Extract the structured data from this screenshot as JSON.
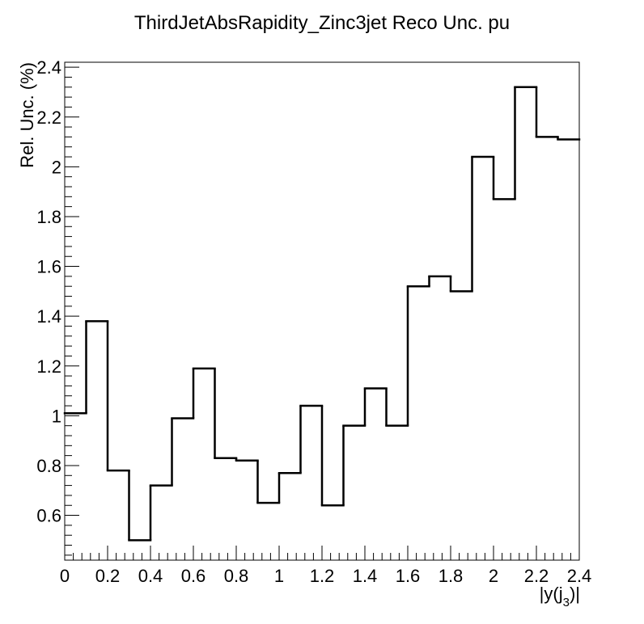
{
  "chart_data": {
    "type": "line",
    "subtype": "step-histogram",
    "title": "ThirdJetAbsRapidity_Zinc3jet Reco Unc. pu",
    "xlabel": {
      "main": "|y(j",
      "sub": "3",
      "tail": ")|"
    },
    "ylabel": "Rel. Unc. (%)",
    "xlim": [
      0,
      2.4
    ],
    "ylim": [
      0.42,
      2.42
    ],
    "x_ticks": [
      0,
      0.2,
      0.4,
      0.6,
      0.8,
      1,
      1.2,
      1.4,
      1.6,
      1.8,
      2,
      2.2,
      2.4
    ],
    "x_tick_labels": [
      "0",
      "0.2",
      "0.4",
      "0.6",
      "0.8",
      "1",
      "1.2",
      "1.4",
      "1.6",
      "1.8",
      "2",
      "2.2",
      "2.4"
    ],
    "y_ticks": [
      0.6,
      0.8,
      1,
      1.2,
      1.4,
      1.6,
      1.8,
      2,
      2.2,
      2.4
    ],
    "y_tick_labels": [
      "0.6",
      "0.8",
      "1",
      "1.2",
      "1.4",
      "1.6",
      "1.8",
      "2",
      "2.2",
      "2.4"
    ],
    "bin_edges": [
      0,
      0.1,
      0.2,
      0.3,
      0.4,
      0.5,
      0.6,
      0.7,
      0.8,
      0.9,
      1.0,
      1.1,
      1.2,
      1.3,
      1.4,
      1.5,
      1.6,
      1.7,
      1.8,
      1.9,
      2.0,
      2.1,
      2.2,
      2.3,
      2.4
    ],
    "values": [
      1.01,
      1.38,
      0.78,
      0.5,
      0.72,
      0.99,
      1.19,
      0.83,
      0.82,
      0.65,
      0.77,
      1.04,
      0.64,
      0.96,
      1.11,
      0.96,
      1.52,
      1.56,
      1.5,
      2.04,
      1.87,
      2.32,
      2.12,
      2.11
    ],
    "grid": false,
    "legend": "none",
    "line_color": "#000000"
  }
}
